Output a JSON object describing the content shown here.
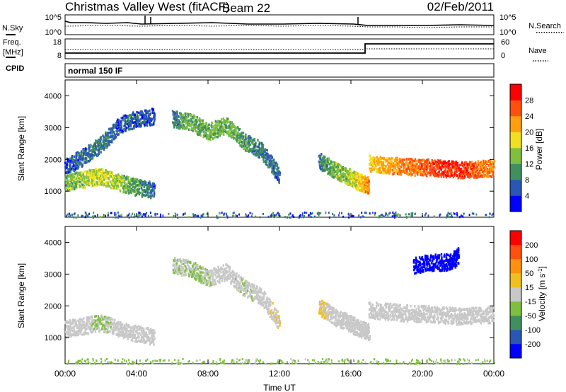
{
  "header": {
    "site": "Christmas Valley West (fitACF)",
    "beam": "Beam 22",
    "date": "02/Feb/2011"
  },
  "summary": {
    "left_top_label": "N.Sky",
    "left_top_ticks": [
      "10^5",
      "10^0"
    ],
    "right_top_label": "N.Search",
    "right_top_ticks": [
      "10^5",
      "10^0"
    ],
    "freq_label_line1": "Freq.",
    "freq_label_line2": "[MHz]",
    "freq_ticks": [
      "18",
      "8"
    ],
    "nave_label": "Nave",
    "nave_ticks": [
      "60",
      "0"
    ],
    "cpid_label": "CPID",
    "cpid_value": "normal 150 IF"
  },
  "chart_data": [
    {
      "type": "heatmap",
      "title": "",
      "ylabel": "Slant Range [km]",
      "xlabel": "",
      "yticks": [
        "1000",
        "2000",
        "3000",
        "4000"
      ],
      "ylim": [
        180,
        4500
      ],
      "colorbar": {
        "label": "Power [dB]",
        "ticks": [
          "4",
          "8",
          "12",
          "16",
          "20",
          "24",
          "28"
        ],
        "colors": [
          "#0000ff",
          "#2a56b4",
          "#3f8f5f",
          "#7fbf3f",
          "#f0e020",
          "#ff9f10",
          "#ff5010",
          "#ff0000"
        ],
        "range": [
          0,
          30
        ]
      },
      "series": [
        {
          "x": [
            0.0,
            1.0,
            2.0,
            3.0,
            4.0,
            5.0
          ],
          "y": [
            1300,
            1400,
            1500,
            1300,
            1150,
            1050
          ],
          "value": [
            12,
            14,
            16,
            14,
            10,
            6
          ]
        },
        {
          "x": [
            0.0,
            1.0,
            2.0,
            3.0,
            4.0,
            5.0
          ],
          "y": [
            1800,
            2100,
            2500,
            3100,
            3300,
            3400
          ],
          "value": [
            6,
            6,
            8,
            6,
            6,
            4
          ]
        },
        {
          "x": [
            6.0,
            7.0,
            8.0,
            9.0,
            10.0,
            11.0,
            12.0
          ],
          "y": [
            3300,
            3200,
            2900,
            3100,
            2600,
            2300,
            1500
          ],
          "value": [
            8,
            12,
            12,
            12,
            10,
            8,
            6
          ]
        },
        {
          "x": [
            14.2,
            15.0,
            15.8,
            16.5,
            17.0
          ],
          "y": [
            2000,
            1700,
            1500,
            1300,
            1200
          ],
          "value": [
            8,
            12,
            14,
            18,
            22
          ]
        },
        {
          "x": [
            17.0,
            18.0,
            19.0,
            20.0,
            21.0,
            22.0,
            23.0,
            24.0
          ],
          "y": [
            1900,
            1850,
            1800,
            1780,
            1750,
            1700,
            1720,
            1750
          ],
          "value": [
            18,
            20,
            22,
            24,
            26,
            26,
            24,
            22
          ]
        }
      ]
    },
    {
      "type": "heatmap",
      "title": "",
      "ylabel": "Slant Range [km]",
      "xlabel": "Time UT",
      "xticks": [
        "00:00",
        "04:00",
        "08:00",
        "12:00",
        "16:00",
        "20:00",
        "00:00"
      ],
      "xlim": [
        0,
        24
      ],
      "yticks": [
        "1000",
        "2000",
        "3000",
        "4000"
      ],
      "ylim": [
        180,
        4500
      ],
      "colorbar": {
        "label": "Velocity [m s^-1]",
        "ticks": [
          "200",
          "100",
          "50",
          "15",
          "-15",
          "-50",
          "-100",
          "-200"
        ],
        "colors": [
          "#0000ff",
          "#2a56b4",
          "#3f8f5f",
          "#7fbf3f",
          "#c8c8c8",
          "#f0c020",
          "#ff9010",
          "#ff5010",
          "#ff0000"
        ],
        "range": [
          -250,
          250
        ]
      },
      "series": [
        {
          "x": [
            0.0,
            1.0,
            2.0,
            3.0,
            4.0,
            5.0
          ],
          "y": [
            1300,
            1400,
            1500,
            1300,
            1150,
            1050
          ],
          "value": [
            0,
            0,
            -30,
            0,
            0,
            0
          ]
        },
        {
          "x": [
            6.0,
            7.0,
            8.0,
            9.0,
            10.0,
            11.0,
            12.0
          ],
          "y": [
            3300,
            3200,
            2900,
            3100,
            2600,
            2300,
            1500
          ],
          "value": [
            -20,
            -30,
            -20,
            0,
            -20,
            0,
            20
          ]
        },
        {
          "x": [
            14.2,
            15.0,
            15.8,
            16.5,
            17.0
          ],
          "y": [
            2000,
            1700,
            1500,
            1300,
            1200
          ],
          "value": [
            40,
            0,
            0,
            0,
            0
          ]
        },
        {
          "x": [
            17.0,
            18.0,
            19.0,
            20.0,
            21.0,
            22.0,
            23.0,
            24.0
          ],
          "y": [
            1900,
            1850,
            1800,
            1780,
            1750,
            1700,
            1720,
            1750
          ],
          "value": [
            0,
            0,
            0,
            0,
            0,
            0,
            0,
            0
          ]
        },
        {
          "x": [
            19.5,
            20.5,
            21.5,
            22.0
          ],
          "y": [
            3300,
            3400,
            3400,
            3600
          ],
          "value": [
            -250,
            -250,
            -250,
            -250
          ]
        }
      ]
    }
  ]
}
